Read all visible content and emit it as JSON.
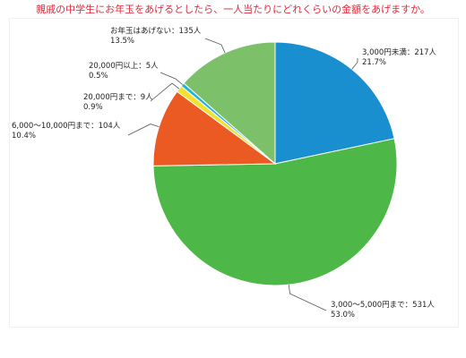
{
  "title": "親戚の中学生にお年玉をあげるとしたら、一人当たりにどれくらいの金額をあげますか。",
  "chart_data": {
    "type": "pie",
    "start_angle_deg": 0,
    "direction": "clockwise",
    "slices": [
      {
        "label": "3,000円未満：217人",
        "percent": "21.7%",
        "value": 217,
        "color": "#1a8fd0"
      },
      {
        "label": "3,000～5,000円まで：531人",
        "percent": "53.0%",
        "value": 531,
        "color": "#4db848"
      },
      {
        "label": "6,000～10,000円まで：104人",
        "percent": "10.4%",
        "value": 104,
        "color": "#ec5a24"
      },
      {
        "label": "20,000円まで：9人",
        "percent": "0.9%",
        "value": 9,
        "color": "#f2e12e"
      },
      {
        "label": "20,000円以上：5人",
        "percent": "0.5%",
        "value": 5,
        "color": "#23b3d9"
      },
      {
        "label": "お年玉はあげない：135人",
        "percent": "13.5%",
        "value": 135,
        "color": "#7cc16a"
      }
    ]
  }
}
